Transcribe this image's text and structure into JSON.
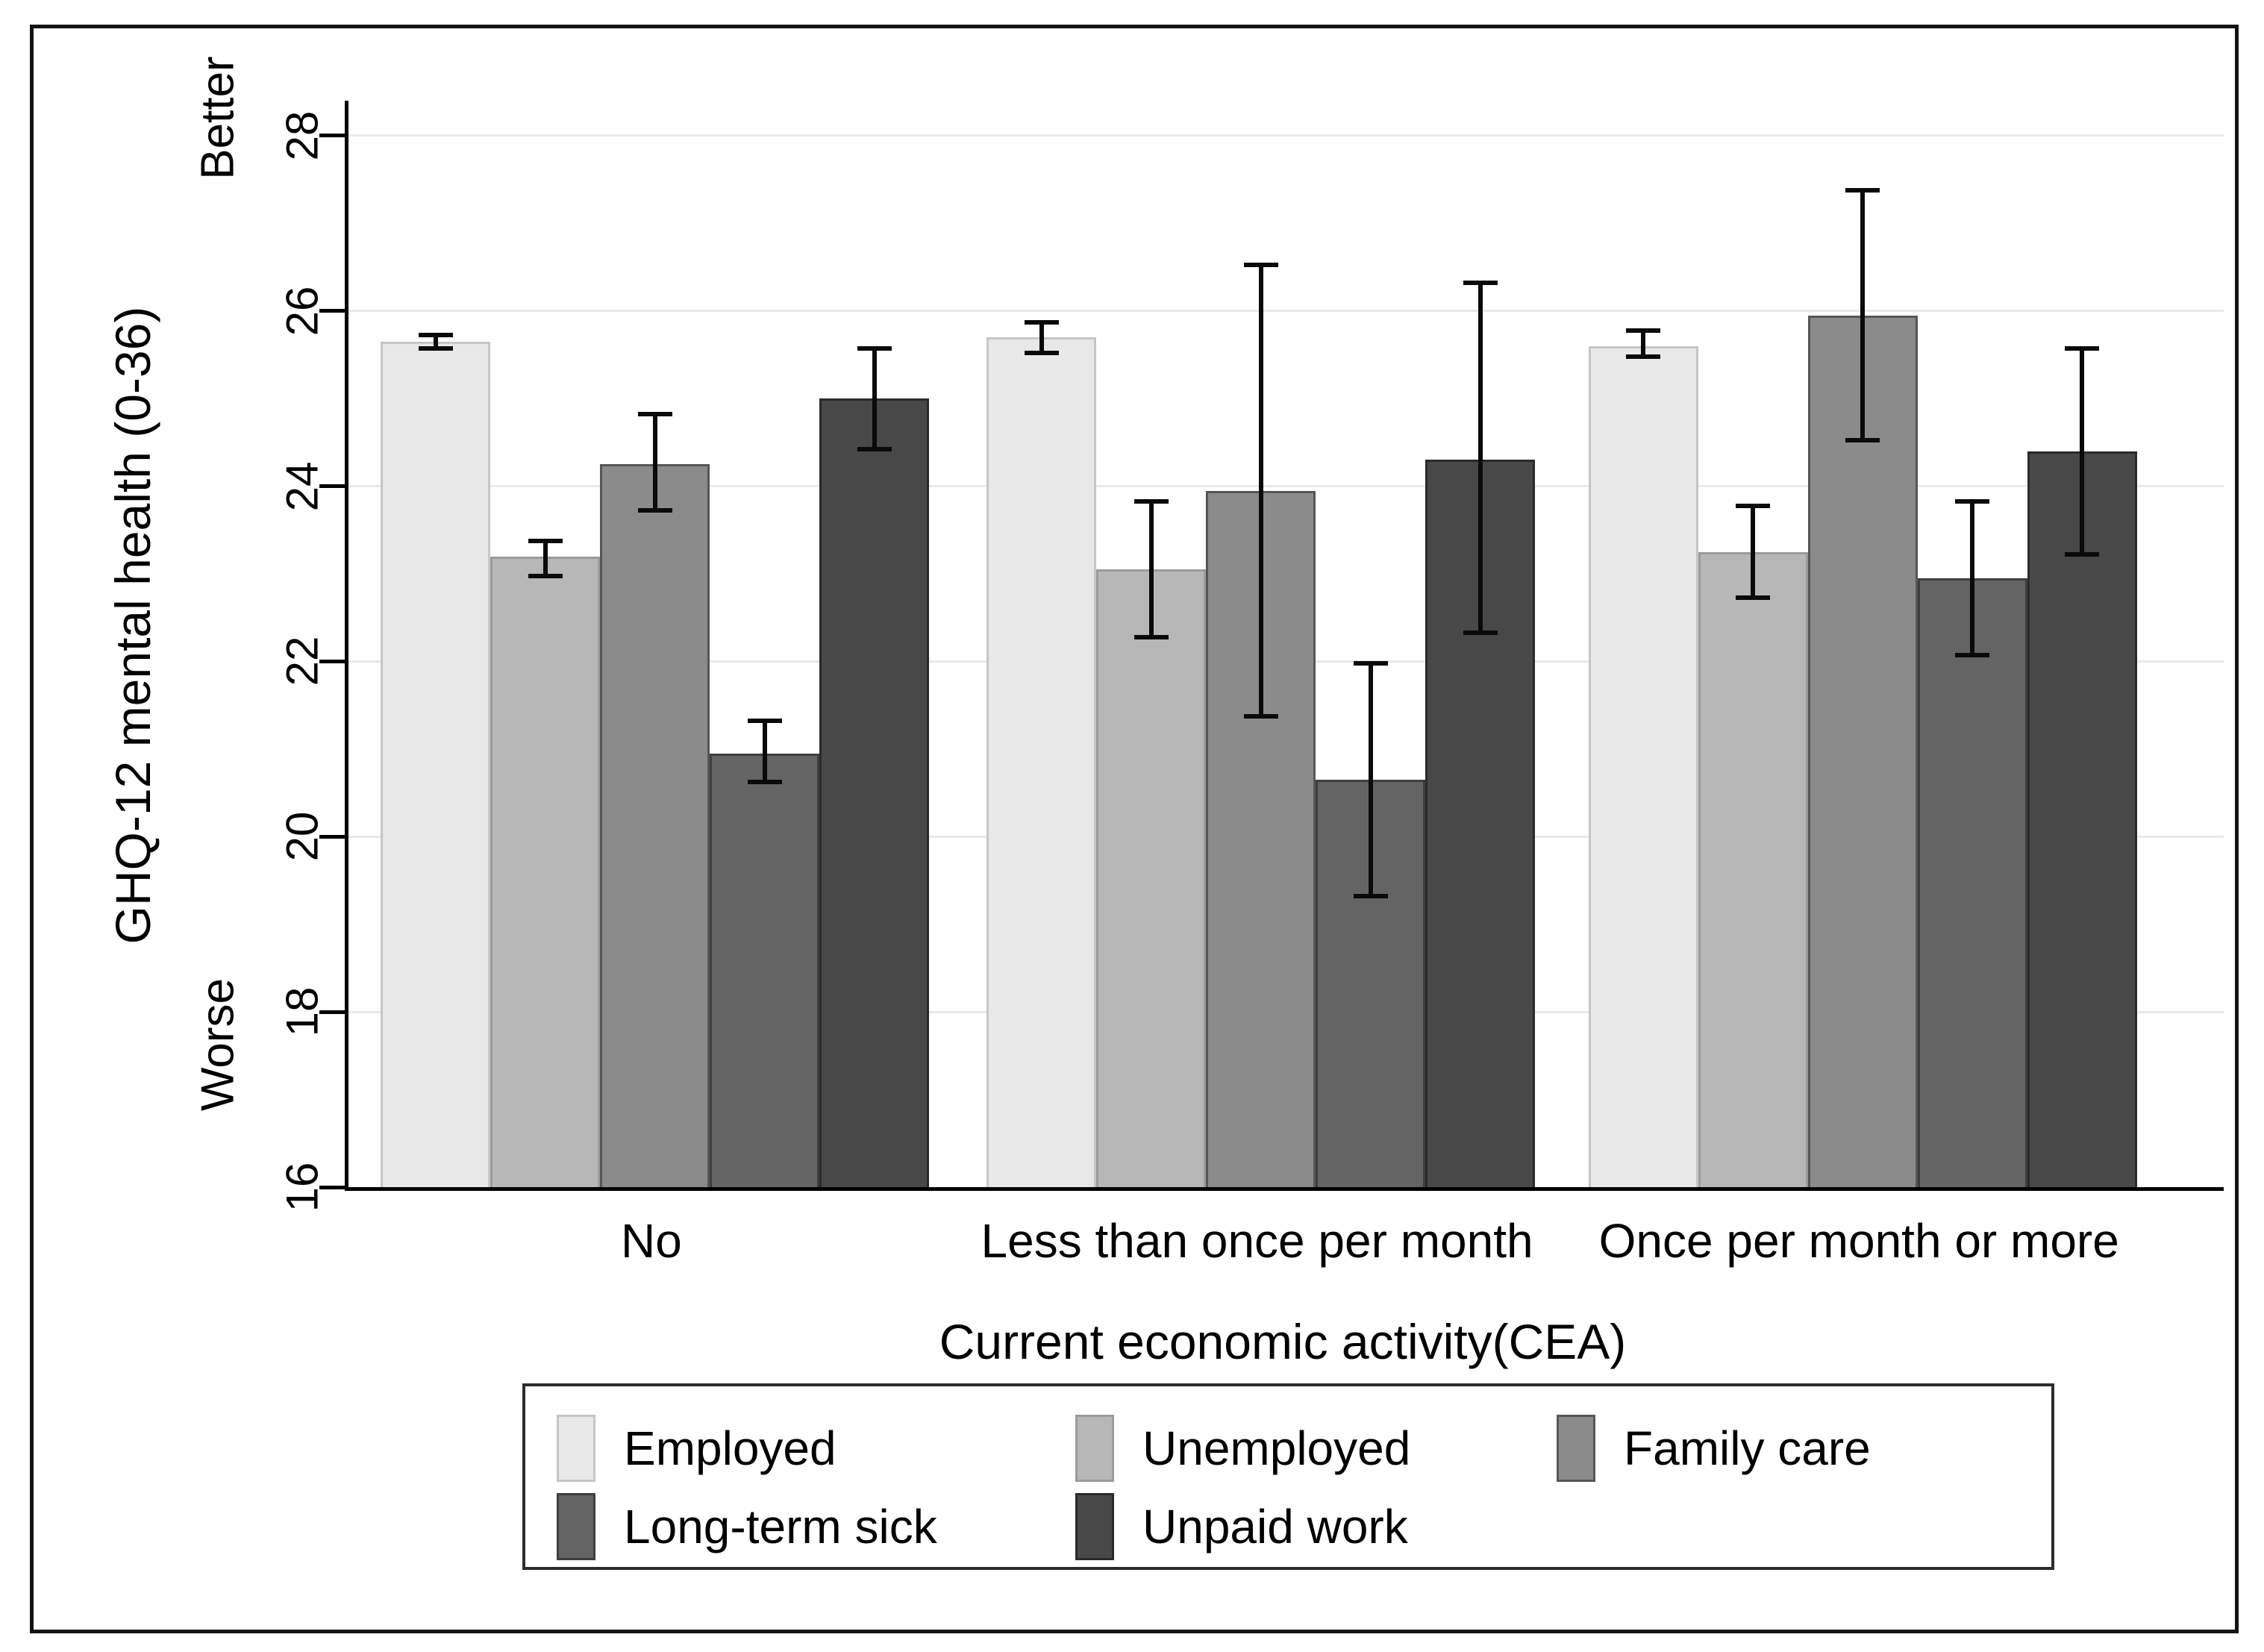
{
  "chart_data": {
    "type": "bar",
    "title": "",
    "ylabel": "GHQ-12 mental health (0-36)",
    "ylabel_top": "Better",
    "ylabel_bottom": "Worse",
    "xlabel": "Current economic activity(CEA)",
    "ylim": [
      16,
      28.4
    ],
    "yticks": [
      16,
      18,
      20,
      22,
      24,
      26,
      28
    ],
    "grid": "horizontal",
    "legend_position": "bottom-center-box",
    "error_bars": true,
    "axis_color": "#000000",
    "gridline_color": "#e9e9e9",
    "categories": [
      "No",
      "Less than once per month",
      "Once per month or more"
    ],
    "series": [
      {
        "name": "Employed",
        "fill": "#e8e8e8",
        "stroke": "#c6c6c6",
        "values": [
          25.65,
          25.7,
          25.6
        ],
        "ci_low": [
          25.55,
          25.5,
          25.45
        ],
        "ci_high": [
          25.75,
          25.9,
          25.8
        ]
      },
      {
        "name": "Unemployed",
        "fill": "#b7b7b7",
        "stroke": "#9b9b9b",
        "values": [
          23.2,
          23.05,
          23.25
        ],
        "ci_low": [
          22.95,
          22.25,
          22.7
        ],
        "ci_high": [
          23.4,
          23.85,
          23.8
        ]
      },
      {
        "name": "Family care",
        "fill": "#8b8b8b",
        "stroke": "#565656",
        "values": [
          24.25,
          23.95,
          25.95
        ],
        "ci_low": [
          23.7,
          21.35,
          24.5
        ],
        "ci_high": [
          24.85,
          26.55,
          27.4
        ]
      },
      {
        "name": "Long-term sick",
        "fill": "#646464",
        "stroke": "#3e3e3e",
        "values": [
          20.95,
          20.65,
          22.95
        ],
        "ci_low": [
          20.6,
          19.3,
          22.05
        ],
        "ci_high": [
          21.35,
          22.0,
          23.85
        ]
      },
      {
        "name": "Unpaid work",
        "fill": "#484848",
        "stroke": "#2a2a2a",
        "values": [
          25.0,
          24.3,
          24.4
        ],
        "ci_low": [
          24.4,
          22.3,
          23.2
        ],
        "ci_high": [
          25.6,
          26.35,
          25.6
        ]
      }
    ]
  }
}
